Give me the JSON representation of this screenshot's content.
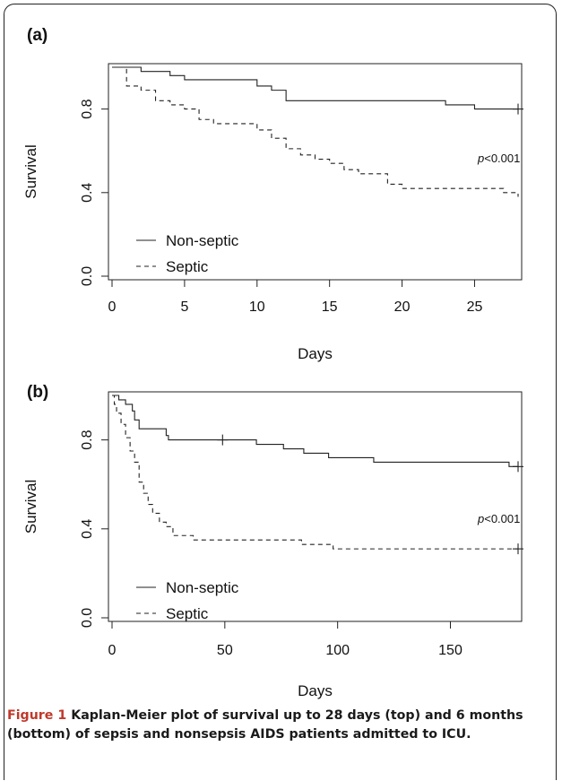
{
  "caption": {
    "label": "Figure 1",
    "text": "Kaplan-Meier plot of survival up to 28 days (top) and 6 months (bottom) of sepsis and nonsepsis AIDS patients admitted to ICU."
  },
  "chart_data": [
    {
      "type": "line",
      "panel_label": "(a)",
      "xlabel": "Days",
      "ylabel": "Survival",
      "xlim": [
        0,
        28
      ],
      "ylim": [
        0,
        1
      ],
      "xticks": [
        0,
        5,
        10,
        15,
        20,
        25
      ],
      "xtick_labels": [
        "0",
        "5",
        "10",
        "15",
        "20",
        "25"
      ],
      "yticks": [
        0.0,
        0.4,
        0.8
      ],
      "ytick_labels": [
        "0.0",
        "0.4",
        "0.8"
      ],
      "annotation": "p<0.001",
      "legend_position": "bottom-left",
      "series": [
        {
          "name": "Non-septic",
          "style": "solid",
          "steps": [
            [
              0,
              1.0
            ],
            [
              2,
              0.98
            ],
            [
              4,
              0.96
            ],
            [
              5,
              0.94
            ],
            [
              10,
              0.91
            ],
            [
              11,
              0.89
            ],
            [
              12,
              0.84
            ],
            [
              23,
              0.82
            ],
            [
              25,
              0.8
            ],
            [
              28,
              0.8
            ]
          ],
          "censor": [
            [
              28,
              0.8
            ]
          ]
        },
        {
          "name": "Septic",
          "style": "dashed",
          "steps": [
            [
              0,
              1.0
            ],
            [
              1,
              0.91
            ],
            [
              2,
              0.89
            ],
            [
              3,
              0.84
            ],
            [
              4,
              0.82
            ],
            [
              5,
              0.8
            ],
            [
              6,
              0.75
            ],
            [
              7,
              0.73
            ],
            [
              10,
              0.7
            ],
            [
              11,
              0.66
            ],
            [
              12,
              0.61
            ],
            [
              13,
              0.58
            ],
            [
              14,
              0.56
            ],
            [
              15,
              0.54
            ],
            [
              16,
              0.51
            ],
            [
              17,
              0.49
            ],
            [
              19,
              0.44
            ],
            [
              20,
              0.42
            ],
            [
              27,
              0.4
            ],
            [
              28,
              0.38
            ]
          ],
          "censor": []
        }
      ]
    },
    {
      "type": "line",
      "panel_label": "(b)",
      "xlabel": "Days",
      "ylabel": "Survival",
      "xlim": [
        0,
        180
      ],
      "ylim": [
        0,
        1
      ],
      "xticks": [
        0,
        50,
        100,
        150
      ],
      "xtick_labels": [
        "0",
        "50",
        "100",
        "150"
      ],
      "yticks": [
        0.0,
        0.4,
        0.8
      ],
      "ytick_labels": [
        "0.0",
        "0.4",
        "0.8"
      ],
      "annotation": "p<0.001",
      "legend_position": "bottom-left",
      "series": [
        {
          "name": "Non-septic",
          "style": "solid",
          "steps": [
            [
              0,
              1.0
            ],
            [
              3,
              0.98
            ],
            [
              6,
              0.96
            ],
            [
              9,
              0.93
            ],
            [
              10,
              0.89
            ],
            [
              12,
              0.85
            ],
            [
              24,
              0.82
            ],
            [
              25,
              0.8
            ],
            [
              64,
              0.78
            ],
            [
              76,
              0.76
            ],
            [
              85,
              0.74
            ],
            [
              96,
              0.72
            ],
            [
              116,
              0.7
            ],
            [
              176,
              0.68
            ],
            [
              180,
              0.68
            ]
          ],
          "censor": [
            [
              49,
              0.8
            ],
            [
              180,
              0.68
            ]
          ]
        },
        {
          "name": "Septic",
          "style": "dashed",
          "steps": [
            [
              0,
              1.0
            ],
            [
              1,
              0.96
            ],
            [
              2,
              0.92
            ],
            [
              4,
              0.87
            ],
            [
              6,
              0.81
            ],
            [
              8,
              0.75
            ],
            [
              10,
              0.7
            ],
            [
              12,
              0.61
            ],
            [
              14,
              0.56
            ],
            [
              16,
              0.51
            ],
            [
              18,
              0.47
            ],
            [
              21,
              0.43
            ],
            [
              24,
              0.41
            ],
            [
              27,
              0.37
            ],
            [
              36,
              0.35
            ],
            [
              84,
              0.33
            ],
            [
              98,
              0.31
            ],
            [
              180,
              0.31
            ]
          ],
          "censor": [
            [
              180,
              0.31
            ]
          ]
        }
      ]
    }
  ]
}
